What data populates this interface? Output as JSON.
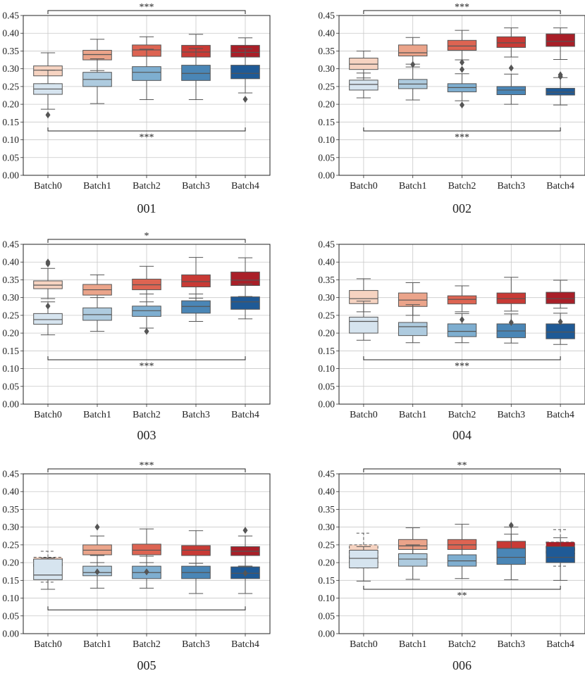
{
  "figure": {
    "tick_labels_y": [
      "0.00",
      "0.05",
      "0.10",
      "0.15",
      "0.20",
      "0.25",
      "0.30",
      "0.35",
      "0.40",
      "0.45"
    ],
    "colors": {
      "red": [
        "#f6d3c1",
        "#eba48a",
        "#dd6452",
        "#c83a35",
        "#a91f28"
      ],
      "blue": [
        "#d6e4ef",
        "#aecbdf",
        "#7eaed0",
        "#4a86b6",
        "#1f5a96"
      ],
      "box_edge": "#555555",
      "grid": "#c8c8c8",
      "outlier": "#555555"
    }
  },
  "chart_data": [
    {
      "type": "box",
      "title": "001",
      "categories": [
        "Batch0",
        "Batch1",
        "Batch2",
        "Batch3",
        "Batch4"
      ],
      "ylim": [
        0,
        0.45
      ],
      "grid": true,
      "top_bracket_label": "***",
      "bottom_bracket_label": "***",
      "series": [
        {
          "color_group": "red",
          "boxes": [
            {
              "q1": 0.28,
              "median": 0.296,
              "q3": 0.308,
              "lo": 0.258,
              "hi": 0.345,
              "outliers": []
            },
            {
              "q1": 0.325,
              "median": 0.34,
              "q3": 0.352,
              "lo": 0.295,
              "hi": 0.383,
              "outliers": []
            },
            {
              "q1": 0.335,
              "median": 0.353,
              "q3": 0.367,
              "lo": 0.292,
              "hi": 0.39,
              "outliers": []
            },
            {
              "q1": 0.333,
              "median": 0.347,
              "q3": 0.366,
              "lo": 0.29,
              "hi": 0.397,
              "outliers": []
            },
            {
              "q1": 0.333,
              "median": 0.346,
              "q3": 0.366,
              "lo": 0.296,
              "hi": 0.387,
              "outliers": []
            }
          ]
        },
        {
          "color_group": "blue",
          "boxes": [
            {
              "q1": 0.228,
              "median": 0.243,
              "q3": 0.258,
              "lo": 0.186,
              "hi": 0.296,
              "outliers": [
                0.17
              ]
            },
            {
              "q1": 0.25,
              "median": 0.27,
              "q3": 0.29,
              "lo": 0.202,
              "hi": 0.328,
              "outliers": []
            },
            {
              "q1": 0.267,
              "median": 0.29,
              "q3": 0.306,
              "lo": 0.213,
              "hi": 0.355,
              "outliers": []
            },
            {
              "q1": 0.267,
              "median": 0.287,
              "q3": 0.31,
              "lo": 0.213,
              "hi": 0.357,
              "outliers": []
            },
            {
              "q1": 0.272,
              "median": 0.287,
              "q3": 0.31,
              "lo": 0.232,
              "hi": 0.356,
              "outliers": [
                0.214
              ]
            }
          ]
        }
      ]
    },
    {
      "type": "box",
      "title": "002",
      "categories": [
        "Batch0",
        "Batch1",
        "Batch2",
        "Batch3",
        "Batch4"
      ],
      "ylim": [
        0,
        0.45
      ],
      "grid": true,
      "top_bracket_label": "***",
      "bottom_bracket_label": "***",
      "series": [
        {
          "color_group": "red",
          "boxes": [
            {
              "q1": 0.298,
              "median": 0.313,
              "q3": 0.33,
              "lo": 0.274,
              "hi": 0.35,
              "outliers": []
            },
            {
              "q1": 0.336,
              "median": 0.345,
              "q3": 0.367,
              "lo": 0.313,
              "hi": 0.388,
              "outliers": [
                0.312
              ]
            },
            {
              "q1": 0.352,
              "median": 0.364,
              "q3": 0.38,
              "lo": 0.325,
              "hi": 0.408,
              "outliers": [
                0.318
              ]
            },
            {
              "q1": 0.36,
              "median": 0.373,
              "q3": 0.39,
              "lo": 0.333,
              "hi": 0.415,
              "outliers": [
                0.302
              ]
            },
            {
              "q1": 0.363,
              "median": 0.377,
              "q3": 0.398,
              "lo": 0.326,
              "hi": 0.415,
              "outliers": [
                0.283
              ]
            }
          ]
        },
        {
          "color_group": "blue",
          "boxes": [
            {
              "q1": 0.24,
              "median": 0.256,
              "q3": 0.268,
              "lo": 0.218,
              "hi": 0.288,
              "outliers": []
            },
            {
              "q1": 0.244,
              "median": 0.257,
              "q3": 0.27,
              "lo": 0.212,
              "hi": 0.305,
              "outliers": []
            },
            {
              "q1": 0.235,
              "median": 0.247,
              "q3": 0.258,
              "lo": 0.21,
              "hi": 0.286,
              "outliers": [
                0.298,
                0.198
              ]
            },
            {
              "q1": 0.227,
              "median": 0.24,
              "q3": 0.25,
              "lo": 0.2,
              "hi": 0.285,
              "outliers": []
            },
            {
              "q1": 0.226,
              "median": 0.234,
              "q3": 0.245,
              "lo": 0.198,
              "hi": 0.275,
              "outliers": [
                0.278
              ]
            }
          ]
        }
      ]
    },
    {
      "type": "box",
      "title": "003",
      "categories": [
        "Batch0",
        "Batch1",
        "Batch2",
        "Batch3",
        "Batch4"
      ],
      "ylim": [
        0,
        0.45
      ],
      "grid": true,
      "top_bracket_label": "*",
      "bottom_bracket_label": "***",
      "series": [
        {
          "color_group": "red",
          "boxes": [
            {
              "q1": 0.325,
              "median": 0.335,
              "q3": 0.347,
              "lo": 0.297,
              "hi": 0.382,
              "outliers": [
                0.4,
                0.395
              ]
            },
            {
              "q1": 0.307,
              "median": 0.322,
              "q3": 0.337,
              "lo": 0.27,
              "hi": 0.364,
              "outliers": []
            },
            {
              "q1": 0.322,
              "median": 0.336,
              "q3": 0.352,
              "lo": 0.288,
              "hi": 0.388,
              "outliers": []
            },
            {
              "q1": 0.33,
              "median": 0.345,
              "q3": 0.364,
              "lo": 0.298,
              "hi": 0.413,
              "outliers": []
            },
            {
              "q1": 0.334,
              "median": 0.349,
              "q3": 0.372,
              "lo": 0.303,
              "hi": 0.412,
              "outliers": []
            }
          ]
        },
        {
          "color_group": "blue",
          "boxes": [
            {
              "q1": 0.225,
              "median": 0.238,
              "q3": 0.255,
              "lo": 0.195,
              "hi": 0.288,
              "outliers": [
                0.276
              ]
            },
            {
              "q1": 0.236,
              "median": 0.252,
              "q3": 0.271,
              "lo": 0.205,
              "hi": 0.3,
              "outliers": []
            },
            {
              "q1": 0.247,
              "median": 0.263,
              "q3": 0.276,
              "lo": 0.214,
              "hi": 0.31,
              "outliers": [
                0.205
              ]
            },
            {
              "q1": 0.256,
              "median": 0.275,
              "q3": 0.291,
              "lo": 0.233,
              "hi": 0.31,
              "outliers": []
            },
            {
              "q1": 0.267,
              "median": 0.288,
              "q3": 0.302,
              "lo": 0.24,
              "hi": 0.338,
              "outliers": []
            }
          ]
        }
      ]
    },
    {
      "type": "box",
      "title": "004",
      "categories": [
        "Batch0",
        "Batch1",
        "Batch2",
        "Batch3",
        "Batch4"
      ],
      "ylim": [
        0,
        0.45
      ],
      "grid": true,
      "top_bracket_label": "",
      "bottom_bracket_label": "***",
      "series": [
        {
          "color_group": "red",
          "boxes": [
            {
              "q1": 0.283,
              "median": 0.297,
              "q3": 0.32,
              "lo": 0.26,
              "hi": 0.353,
              "outliers": []
            },
            {
              "q1": 0.275,
              "median": 0.293,
              "q3": 0.313,
              "lo": 0.25,
              "hi": 0.342,
              "outliers": []
            },
            {
              "q1": 0.282,
              "median": 0.295,
              "q3": 0.305,
              "lo": 0.26,
              "hi": 0.333,
              "outliers": []
            },
            {
              "q1": 0.283,
              "median": 0.297,
              "q3": 0.313,
              "lo": 0.262,
              "hi": 0.357,
              "outliers": []
            },
            {
              "q1": 0.283,
              "median": 0.297,
              "q3": 0.315,
              "lo": 0.27,
              "hi": 0.349,
              "outliers": []
            }
          ]
        },
        {
          "color_group": "blue",
          "boxes": [
            {
              "q1": 0.2,
              "median": 0.233,
              "q3": 0.245,
              "lo": 0.18,
              "hi": 0.29,
              "outliers": []
            },
            {
              "q1": 0.193,
              "median": 0.218,
              "q3": 0.23,
              "lo": 0.173,
              "hi": 0.28,
              "outliers": []
            },
            {
              "q1": 0.19,
              "median": 0.205,
              "q3": 0.226,
              "lo": 0.173,
              "hi": 0.255,
              "outliers": [
                0.238
              ]
            },
            {
              "q1": 0.187,
              "median": 0.206,
              "q3": 0.226,
              "lo": 0.172,
              "hi": 0.254,
              "outliers": [
                0.23
              ]
            },
            {
              "q1": 0.184,
              "median": 0.203,
              "q3": 0.226,
              "lo": 0.168,
              "hi": 0.256,
              "outliers": [
                0.232
              ]
            }
          ]
        }
      ]
    },
    {
      "type": "box",
      "title": "005",
      "categories": [
        "Batch0",
        "Batch1",
        "Batch2",
        "Batch3",
        "Batch4"
      ],
      "ylim": [
        0,
        0.45
      ],
      "grid": true,
      "top_bracket_label": "***",
      "bottom_bracket_label": "",
      "series": [
        {
          "color_group": "red",
          "boxes": [
            {
              "q1": 0.185,
              "median": 0.2,
              "q3": 0.215,
              "lo": 0.145,
              "hi": 0.232,
              "outliers": [],
              "dashed": true
            },
            {
              "q1": 0.222,
              "median": 0.235,
              "q3": 0.25,
              "lo": 0.2,
              "hi": 0.275,
              "outliers": [
                0.3
              ]
            },
            {
              "q1": 0.222,
              "median": 0.235,
              "q3": 0.252,
              "lo": 0.2,
              "hi": 0.295,
              "outliers": []
            },
            {
              "q1": 0.22,
              "median": 0.235,
              "q3": 0.248,
              "lo": 0.198,
              "hi": 0.29,
              "outliers": []
            },
            {
              "q1": 0.22,
              "median": 0.232,
              "q3": 0.245,
              "lo": 0.19,
              "hi": 0.275,
              "outliers": [
                0.291
              ]
            }
          ]
        },
        {
          "color_group": "blue",
          "boxes": [
            {
              "q1": 0.152,
              "median": 0.165,
              "q3": 0.21,
              "lo": 0.125,
              "hi": 0.213,
              "outliers": []
            },
            {
              "q1": 0.163,
              "median": 0.172,
              "q3": 0.19,
              "lo": 0.128,
              "hi": 0.22,
              "outliers": [
                0.174
              ]
            },
            {
              "q1": 0.155,
              "median": 0.172,
              "q3": 0.19,
              "lo": 0.128,
              "hi": 0.218,
              "outliers": [
                0.174
              ]
            },
            {
              "q1": 0.155,
              "median": 0.172,
              "q3": 0.19,
              "lo": 0.113,
              "hi": 0.22,
              "outliers": []
            },
            {
              "q1": 0.155,
              "median": 0.17,
              "q3": 0.188,
              "lo": 0.113,
              "hi": 0.19,
              "outliers": [
                0.17
              ]
            }
          ]
        }
      ]
    },
    {
      "type": "box",
      "title": "006",
      "categories": [
        "Batch0",
        "Batch1",
        "Batch2",
        "Batch3",
        "Batch4"
      ],
      "ylim": [
        0,
        0.45
      ],
      "grid": true,
      "top_bracket_label": "**",
      "bottom_bracket_label": "**",
      "series": [
        {
          "color_group": "red",
          "boxes": [
            {
              "q1": 0.2,
              "median": 0.233,
              "q3": 0.25,
              "lo": 0.185,
              "hi": 0.283,
              "outliers": [],
              "dashed": true
            },
            {
              "q1": 0.237,
              "median": 0.247,
              "q3": 0.265,
              "lo": 0.205,
              "hi": 0.298,
              "outliers": []
            },
            {
              "q1": 0.237,
              "median": 0.25,
              "q3": 0.265,
              "lo": 0.21,
              "hi": 0.308,
              "outliers": []
            },
            {
              "q1": 0.225,
              "median": 0.24,
              "q3": 0.26,
              "lo": 0.2,
              "hi": 0.3,
              "outliers": [
                0.305
              ]
            },
            {
              "q1": 0.225,
              "median": 0.24,
              "q3": 0.258,
              "lo": 0.19,
              "hi": 0.293,
              "outliers": [],
              "dashed": true
            }
          ]
        },
        {
          "color_group": "blue",
          "boxes": [
            {
              "q1": 0.185,
              "median": 0.212,
              "q3": 0.235,
              "lo": 0.148,
              "hi": 0.245,
              "outliers": []
            },
            {
              "q1": 0.19,
              "median": 0.21,
              "q3": 0.225,
              "lo": 0.153,
              "hi": 0.25,
              "outliers": []
            },
            {
              "q1": 0.19,
              "median": 0.205,
              "q3": 0.222,
              "lo": 0.155,
              "hi": 0.25,
              "outliers": []
            },
            {
              "q1": 0.195,
              "median": 0.215,
              "q3": 0.24,
              "lo": 0.152,
              "hi": 0.28,
              "outliers": []
            },
            {
              "q1": 0.2,
              "median": 0.215,
              "q3": 0.245,
              "lo": 0.15,
              "hi": 0.27,
              "outliers": []
            }
          ]
        }
      ]
    }
  ]
}
